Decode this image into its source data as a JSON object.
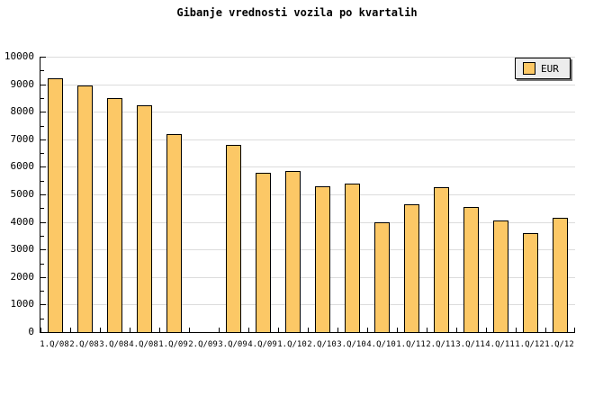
{
  "title": "Gibanje vrednosti vozila po kvartalih",
  "legend": {
    "label": "EUR",
    "position": "top-right"
  },
  "colors": {
    "bar_fill": "#fcc866",
    "bar_border": "#000000",
    "gridline": "#dcdcdc",
    "axis": "#000000",
    "legend_bg": "#ececec",
    "legend_shadow": "#777777",
    "background": "#ffffff",
    "text": "#000000"
  },
  "chart_data": {
    "type": "bar",
    "title": "Gibanje vrednosti vozila po kvartalih",
    "series_name": "EUR",
    "categories": [
      "1.Q/08",
      "2.Q/08",
      "3.Q/08",
      "4.Q/08",
      "1.Q/09",
      "2.Q/09",
      "3.Q/09",
      "4.Q/09",
      "1.Q/10",
      "2.Q/10",
      "3.Q/10",
      "4.Q/10",
      "1.Q/11",
      "2.Q/11",
      "3.Q/11",
      "4.Q/11",
      "1.Q/12",
      "1.Q/12"
    ],
    "values": [
      9200,
      8950,
      8500,
      8250,
      7200,
      null,
      6800,
      5800,
      5850,
      5300,
      5400,
      4000,
      4650,
      5250,
      4550,
      4050,
      3600,
      4150
    ],
    "xlabel": "",
    "ylabel": "",
    "ylim": [
      0,
      10000
    ],
    "ytick_step": 1000,
    "ytick_minor_step": 500,
    "grid": true,
    "legend_position": "top-right"
  }
}
